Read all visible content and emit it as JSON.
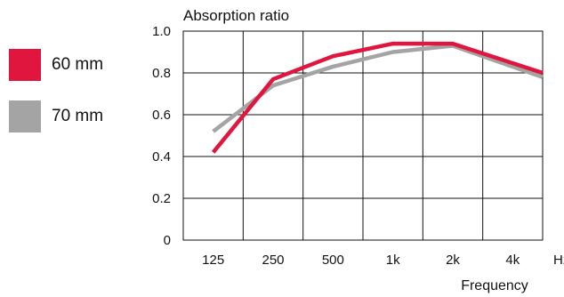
{
  "chart_data": {
    "type": "line",
    "title": "",
    "ylabel": "Absorption ratio",
    "xlabel": "Frequency",
    "x_unit": "Hz",
    "categories": [
      "125",
      "250",
      "500",
      "1k",
      "2k",
      "4k"
    ],
    "ylim": [
      0,
      1.0
    ],
    "yticks": [
      "0",
      "0.2",
      "0.4",
      "0.6",
      "0.8",
      "1.0"
    ],
    "grid": true,
    "legend_position": "left",
    "series": [
      {
        "name": "60 mm",
        "color": "#e0163e",
        "values": [
          0.42,
          0.77,
          0.88,
          0.94,
          0.94,
          0.8
        ]
      },
      {
        "name": "70 mm",
        "color": "#a4a4a4",
        "values": [
          0.52,
          0.74,
          0.83,
          0.9,
          0.93,
          0.78
        ]
      }
    ]
  }
}
